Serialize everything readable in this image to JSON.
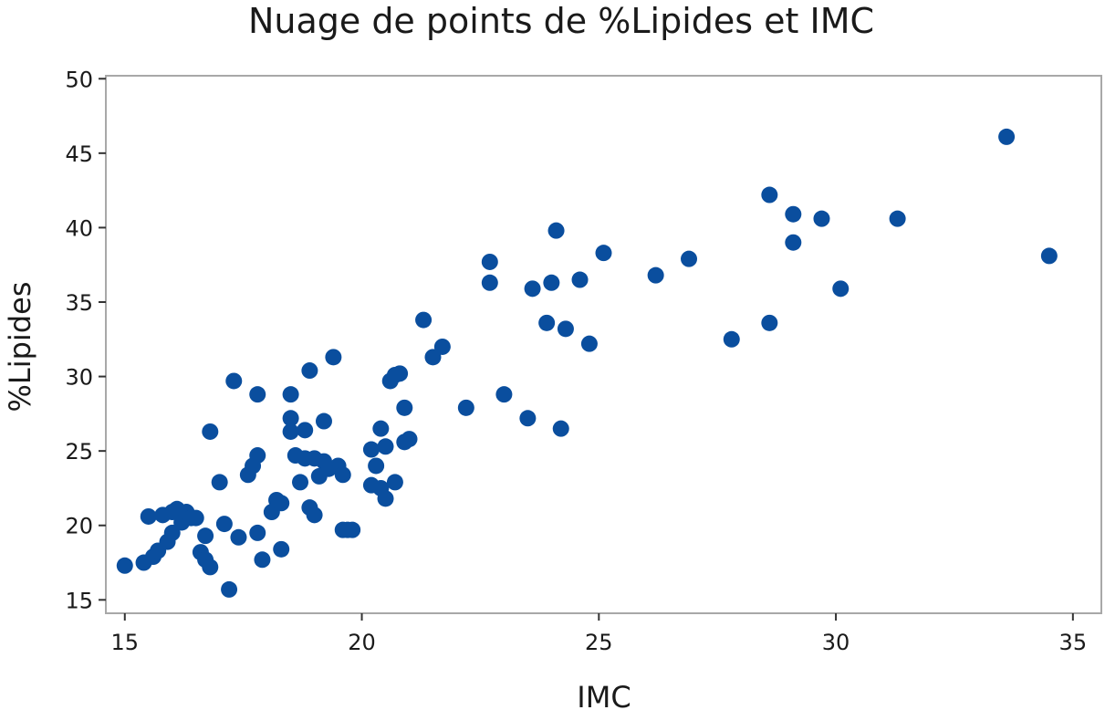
{
  "chart_data": {
    "type": "scatter",
    "title": "Nuage de points de %Lipides et IMC",
    "xlabel": "IMC",
    "ylabel": "%Lipides",
    "xlim": [
      14.6,
      35.6
    ],
    "ylim": [
      14.1,
      50.2
    ],
    "xticks": [
      15,
      20,
      25,
      30,
      35
    ],
    "yticks": [
      15,
      20,
      25,
      30,
      35,
      40,
      45,
      50
    ],
    "grid": false,
    "marker_color": "#0a4e9e",
    "points": [
      {
        "x": 15.0,
        "y": 17.3
      },
      {
        "x": 15.4,
        "y": 17.5
      },
      {
        "x": 15.5,
        "y": 20.6
      },
      {
        "x": 15.6,
        "y": 17.9
      },
      {
        "x": 15.7,
        "y": 18.3
      },
      {
        "x": 15.8,
        "y": 20.7
      },
      {
        "x": 15.9,
        "y": 18.9
      },
      {
        "x": 16.0,
        "y": 19.5
      },
      {
        "x": 16.0,
        "y": 20.9
      },
      {
        "x": 16.1,
        "y": 21.1
      },
      {
        "x": 16.2,
        "y": 20.2
      },
      {
        "x": 16.3,
        "y": 20.9
      },
      {
        "x": 16.4,
        "y": 20.5
      },
      {
        "x": 16.5,
        "y": 20.5
      },
      {
        "x": 16.6,
        "y": 18.2
      },
      {
        "x": 16.7,
        "y": 19.3
      },
      {
        "x": 16.7,
        "y": 17.7
      },
      {
        "x": 16.8,
        "y": 17.2
      },
      {
        "x": 16.8,
        "y": 26.3
      },
      {
        "x": 17.0,
        "y": 22.9
      },
      {
        "x": 17.1,
        "y": 20.1
      },
      {
        "x": 17.2,
        "y": 15.7
      },
      {
        "x": 17.3,
        "y": 29.7
      },
      {
        "x": 17.4,
        "y": 19.2
      },
      {
        "x": 17.6,
        "y": 23.4
      },
      {
        "x": 17.7,
        "y": 24.0
      },
      {
        "x": 17.8,
        "y": 24.7
      },
      {
        "x": 17.8,
        "y": 19.5
      },
      {
        "x": 17.8,
        "y": 28.8
      },
      {
        "x": 17.9,
        "y": 17.7
      },
      {
        "x": 18.1,
        "y": 20.9
      },
      {
        "x": 18.2,
        "y": 21.7
      },
      {
        "x": 18.3,
        "y": 21.5
      },
      {
        "x": 18.3,
        "y": 18.4
      },
      {
        "x": 18.5,
        "y": 28.8
      },
      {
        "x": 18.5,
        "y": 27.2
      },
      {
        "x": 18.5,
        "y": 26.3
      },
      {
        "x": 18.6,
        "y": 24.7
      },
      {
        "x": 18.7,
        "y": 22.9
      },
      {
        "x": 18.8,
        "y": 24.5
      },
      {
        "x": 18.8,
        "y": 26.4
      },
      {
        "x": 18.9,
        "y": 30.4
      },
      {
        "x": 18.9,
        "y": 21.2
      },
      {
        "x": 19.0,
        "y": 20.7
      },
      {
        "x": 19.0,
        "y": 24.5
      },
      {
        "x": 19.1,
        "y": 23.3
      },
      {
        "x": 19.2,
        "y": 24.3
      },
      {
        "x": 19.2,
        "y": 27.0
      },
      {
        "x": 19.3,
        "y": 23.8
      },
      {
        "x": 19.4,
        "y": 31.3
      },
      {
        "x": 19.5,
        "y": 24.0
      },
      {
        "x": 19.6,
        "y": 19.7
      },
      {
        "x": 19.6,
        "y": 23.4
      },
      {
        "x": 19.7,
        "y": 19.7
      },
      {
        "x": 19.8,
        "y": 19.7
      },
      {
        "x": 20.2,
        "y": 25.1
      },
      {
        "x": 20.2,
        "y": 22.7
      },
      {
        "x": 20.3,
        "y": 24.0
      },
      {
        "x": 20.4,
        "y": 26.5
      },
      {
        "x": 20.4,
        "y": 22.5
      },
      {
        "x": 20.5,
        "y": 21.8
      },
      {
        "x": 20.5,
        "y": 25.3
      },
      {
        "x": 20.6,
        "y": 29.7
      },
      {
        "x": 20.7,
        "y": 22.9
      },
      {
        "x": 20.7,
        "y": 30.1
      },
      {
        "x": 20.8,
        "y": 30.2
      },
      {
        "x": 20.9,
        "y": 27.9
      },
      {
        "x": 20.9,
        "y": 25.6
      },
      {
        "x": 21.0,
        "y": 25.8
      },
      {
        "x": 21.3,
        "y": 33.8
      },
      {
        "x": 21.5,
        "y": 31.3
      },
      {
        "x": 21.7,
        "y": 32.0
      },
      {
        "x": 22.2,
        "y": 27.9
      },
      {
        "x": 22.7,
        "y": 37.7
      },
      {
        "x": 22.7,
        "y": 36.3
      },
      {
        "x": 23.0,
        "y": 28.8
      },
      {
        "x": 23.5,
        "y": 27.2
      },
      {
        "x": 23.6,
        "y": 35.9
      },
      {
        "x": 23.9,
        "y": 33.6
      },
      {
        "x": 24.0,
        "y": 36.3
      },
      {
        "x": 24.1,
        "y": 39.8
      },
      {
        "x": 24.2,
        "y": 26.5
      },
      {
        "x": 24.3,
        "y": 33.2
      },
      {
        "x": 24.6,
        "y": 36.5
      },
      {
        "x": 24.8,
        "y": 32.2
      },
      {
        "x": 25.1,
        "y": 38.3
      },
      {
        "x": 26.2,
        "y": 36.8
      },
      {
        "x": 26.9,
        "y": 37.9
      },
      {
        "x": 27.8,
        "y": 32.5
      },
      {
        "x": 28.6,
        "y": 42.2
      },
      {
        "x": 28.6,
        "y": 33.6
      },
      {
        "x": 29.1,
        "y": 40.9
      },
      {
        "x": 29.1,
        "y": 39.0
      },
      {
        "x": 29.7,
        "y": 40.6
      },
      {
        "x": 30.1,
        "y": 35.9
      },
      {
        "x": 31.3,
        "y": 40.6
      },
      {
        "x": 33.6,
        "y": 46.1
      },
      {
        "x": 34.5,
        "y": 38.1
      }
    ]
  }
}
